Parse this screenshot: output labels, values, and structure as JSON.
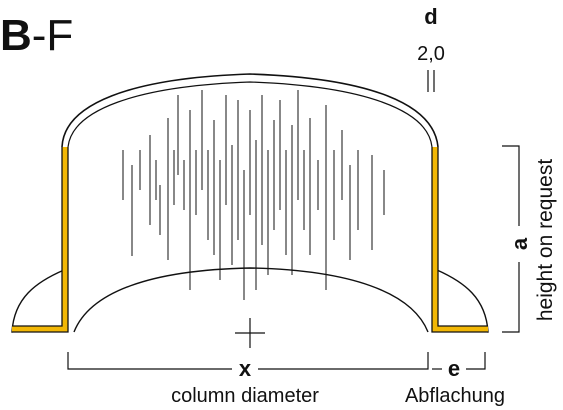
{
  "title": {
    "bold": "B",
    "rest": "-F"
  },
  "dimension_d": {
    "letter": "d",
    "value": "2,0"
  },
  "dimension_a": {
    "letter": "a",
    "label": "height on request"
  },
  "dimension_x": {
    "letter": "x",
    "label": "column diameter"
  },
  "dimension_e": {
    "letter": "e",
    "label": "Abflachung"
  },
  "colors": {
    "accent": "#f2b705",
    "line": "#111111"
  }
}
